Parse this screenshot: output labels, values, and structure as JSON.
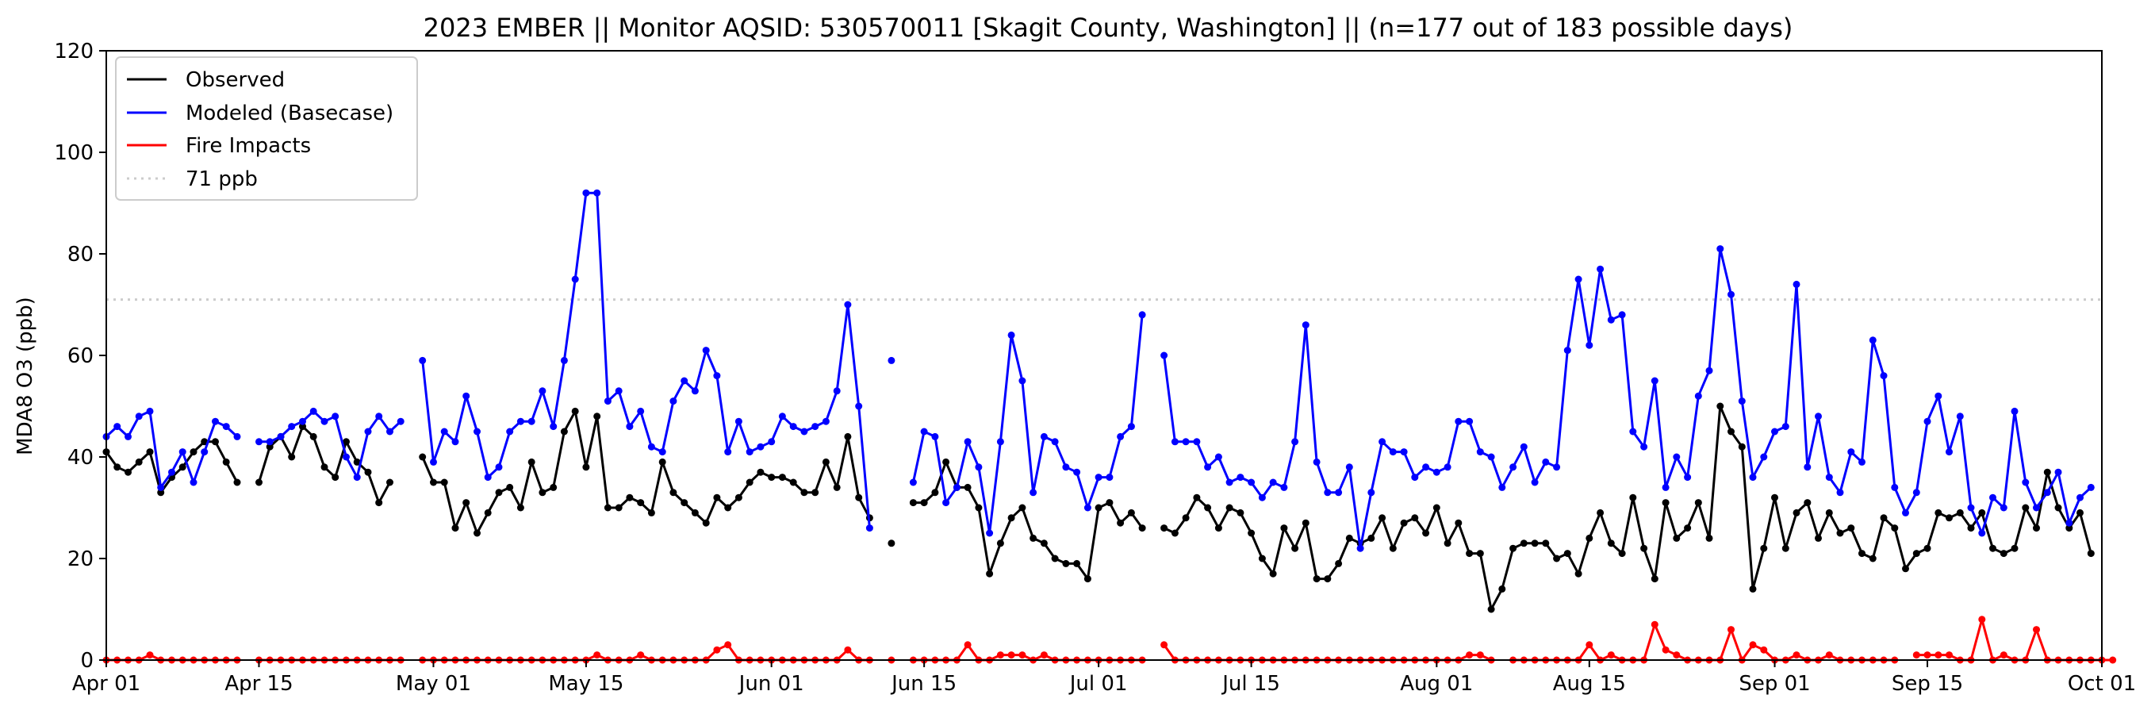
{
  "chart_data": {
    "type": "line",
    "title": "2023 EMBER || Monitor AQSID: 530570011 [Skagit County, Washington] || (n=177 out of 183 possible days)",
    "xlabel": "",
    "ylabel": "MDA8 O3 (ppb)",
    "ylim": [
      0,
      120
    ],
    "yticks": [
      0,
      20,
      40,
      60,
      80,
      100,
      120
    ],
    "xlim_days": [
      0,
      183
    ],
    "xticks": [
      {
        "day": 0,
        "label": "Apr 01"
      },
      {
        "day": 14,
        "label": "Apr 15"
      },
      {
        "day": 30,
        "label": "May 01"
      },
      {
        "day": 44,
        "label": "May 15"
      },
      {
        "day": 61,
        "label": "Jun 01"
      },
      {
        "day": 75,
        "label": "Jun 15"
      },
      {
        "day": 91,
        "label": "Jul 01"
      },
      {
        "day": 105,
        "label": "Jul 15"
      },
      {
        "day": 122,
        "label": "Aug 01"
      },
      {
        "day": 136,
        "label": "Aug 15"
      },
      {
        "day": 153,
        "label": "Sep 01"
      },
      {
        "day": 167,
        "label": "Sep 15"
      },
      {
        "day": 183,
        "label": "Oct 01"
      }
    ],
    "reference_line": {
      "name": "71 ppb",
      "value": 71,
      "color": "#cccccc"
    },
    "legend_position": "upper-left",
    "series": [
      {
        "name": "Observed",
        "color": "#000000",
        "values": [
          41,
          38,
          37,
          39,
          41,
          33,
          36,
          38,
          41,
          43,
          43,
          39,
          35,
          null,
          35,
          42,
          44,
          40,
          46,
          44,
          38,
          36,
          43,
          39,
          37,
          31,
          35,
          null,
          null,
          40,
          35,
          35,
          26,
          31,
          25,
          29,
          33,
          34,
          30,
          39,
          33,
          34,
          45,
          49,
          38,
          48,
          30,
          30,
          32,
          31,
          29,
          39,
          33,
          31,
          29,
          27,
          32,
          30,
          32,
          35,
          37,
          36,
          36,
          35,
          33,
          33,
          39,
          34,
          44,
          32,
          28,
          null,
          23,
          null,
          31,
          31,
          33,
          39,
          34,
          34,
          30,
          17,
          23,
          28,
          30,
          24,
          23,
          20,
          19,
          19,
          16,
          30,
          31,
          27,
          29,
          26,
          null,
          26,
          25,
          28,
          32,
          30,
          26,
          30,
          29,
          25,
          20,
          17,
          26,
          22,
          27,
          16,
          16,
          19,
          24,
          23,
          24,
          28,
          22,
          27,
          28,
          25,
          30,
          23,
          27,
          21,
          21,
          10,
          14,
          22,
          23,
          23,
          23,
          20,
          21,
          17,
          24,
          29,
          23,
          21,
          32,
          22,
          16,
          31,
          24,
          26,
          31,
          24,
          50,
          45,
          42,
          14,
          22,
          32,
          22,
          29,
          31,
          24,
          29,
          25,
          26,
          21,
          20,
          28,
          26,
          18,
          21,
          22,
          29,
          28,
          29,
          26,
          29,
          22,
          21,
          22,
          30,
          26,
          37,
          30,
          26,
          29,
          21
        ]
      },
      {
        "name": "Modeled (Basecase)",
        "color": "#0000ff",
        "values": [
          44,
          46,
          44,
          48,
          49,
          34,
          37,
          41,
          35,
          41,
          47,
          46,
          44,
          null,
          43,
          43,
          44,
          46,
          47,
          49,
          47,
          48,
          40,
          36,
          45,
          48,
          45,
          47,
          null,
          59,
          39,
          45,
          43,
          52,
          45,
          36,
          38,
          45,
          47,
          47,
          53,
          46,
          59,
          75,
          92,
          92,
          51,
          53,
          46,
          49,
          42,
          41,
          51,
          55,
          53,
          61,
          56,
          41,
          47,
          41,
          42,
          43,
          48,
          46,
          45,
          46,
          47,
          53,
          70,
          50,
          26,
          null,
          59,
          null,
          35,
          45,
          44,
          31,
          34,
          43,
          38,
          25,
          43,
          64,
          55,
          33,
          44,
          43,
          38,
          37,
          30,
          36,
          36,
          44,
          46,
          68,
          null,
          60,
          43,
          43,
          43,
          38,
          40,
          35,
          36,
          35,
          32,
          35,
          34,
          43,
          66,
          39,
          33,
          33,
          38,
          22,
          33,
          43,
          41,
          41,
          36,
          38,
          37,
          38,
          47,
          47,
          41,
          40,
          34,
          38,
          42,
          35,
          39,
          38,
          61,
          75,
          62,
          77,
          67,
          68,
          45,
          42,
          55,
          34,
          40,
          36,
          52,
          57,
          81,
          72,
          51,
          36,
          40,
          45,
          46,
          74,
          38,
          48,
          36,
          33,
          41,
          39,
          63,
          56,
          34,
          29,
          33,
          47,
          52,
          41,
          48,
          30,
          25,
          32,
          30,
          49,
          35,
          30,
          33,
          37,
          27,
          32,
          34
        ]
      },
      {
        "name": "Fire Impacts",
        "color": "#ff0000",
        "values": [
          0,
          0,
          0,
          0,
          1,
          0,
          0,
          0,
          0,
          0,
          0,
          0,
          0,
          null,
          0,
          0,
          0,
          0,
          0,
          0,
          0,
          0,
          0,
          0,
          0,
          0,
          0,
          0,
          null,
          0,
          0,
          0,
          0,
          0,
          0,
          0,
          0,
          0,
          0,
          0,
          0,
          0,
          0,
          0,
          0,
          1,
          0,
          0,
          0,
          1,
          0,
          0,
          0,
          0,
          0,
          0,
          2,
          3,
          0,
          0,
          0,
          0,
          0,
          0,
          0,
          0,
          0,
          0,
          2,
          0,
          0,
          null,
          0,
          null,
          0,
          0,
          0,
          0,
          0,
          3,
          0,
          0,
          1,
          1,
          1,
          0,
          1,
          0,
          0,
          0,
          0,
          0,
          0,
          0,
          0,
          0,
          null,
          3,
          0,
          0,
          0,
          0,
          0,
          0,
          0,
          0,
          0,
          0,
          0,
          0,
          0,
          0,
          0,
          0,
          0,
          0,
          0,
          0,
          0,
          0,
          0,
          0,
          0,
          0,
          0,
          1,
          1,
          0,
          null,
          0,
          0,
          0,
          0,
          0,
          0,
          0,
          3,
          0,
          1,
          0,
          0,
          0,
          7,
          2,
          1,
          0,
          0,
          0,
          0,
          6,
          0,
          3,
          2,
          0,
          0,
          1,
          0,
          0,
          1,
          0,
          0,
          0,
          0,
          0,
          0,
          null,
          1,
          1,
          1,
          1,
          0,
          0,
          8,
          0,
          1,
          0,
          0,
          6,
          0,
          0,
          0,
          0,
          0,
          0,
          0
        ]
      }
    ]
  },
  "legend": {
    "items": [
      "Observed",
      "Modeled (Basecase)",
      "Fire Impacts",
      "71 ppb"
    ]
  }
}
